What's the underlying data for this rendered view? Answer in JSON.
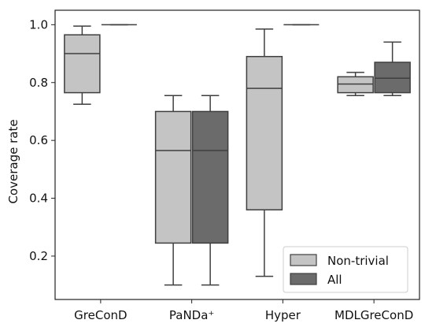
{
  "chart_data": {
    "type": "box",
    "categories": [
      "GreConD",
      "PaNDa⁺",
      "Hyper",
      "MDLGreConD"
    ],
    "ylabel": "Coverage rate",
    "xlabel": "",
    "ylim": [
      0.05,
      1.05
    ],
    "yticks": [
      "0.2",
      "0.4",
      "0.6",
      "0.8",
      "1.0"
    ],
    "grid": false,
    "legend": {
      "position": "bottom-right"
    },
    "series": [
      {
        "name": "Non-trivial",
        "color": "#c4c4c4",
        "boxes": [
          {
            "whislo": 0.725,
            "q1": 0.765,
            "med": 0.9,
            "q3": 0.965,
            "whishi": 0.995
          },
          {
            "whislo": 0.1,
            "q1": 0.245,
            "med": 0.565,
            "q3": 0.7,
            "whishi": 0.755
          },
          {
            "whislo": 0.13,
            "q1": 0.36,
            "med": 0.78,
            "q3": 0.89,
            "whishi": 0.985
          },
          {
            "whislo": 0.755,
            "q1": 0.765,
            "med": 0.795,
            "q3": 0.82,
            "whishi": 0.835
          }
        ]
      },
      {
        "name": "All",
        "color": "#6b6b6b",
        "boxes": [
          {
            "whislo": 1.0,
            "q1": 1.0,
            "med": 1.0,
            "q3": 1.0,
            "whishi": 1.0
          },
          {
            "whislo": 0.1,
            "q1": 0.245,
            "med": 0.565,
            "q3": 0.7,
            "whishi": 0.755
          },
          {
            "whislo": 1.0,
            "q1": 1.0,
            "med": 1.0,
            "q3": 1.0,
            "whishi": 1.0
          },
          {
            "whislo": 0.755,
            "q1": 0.765,
            "med": 0.815,
            "q3": 0.87,
            "whishi": 0.94
          }
        ]
      }
    ]
  }
}
